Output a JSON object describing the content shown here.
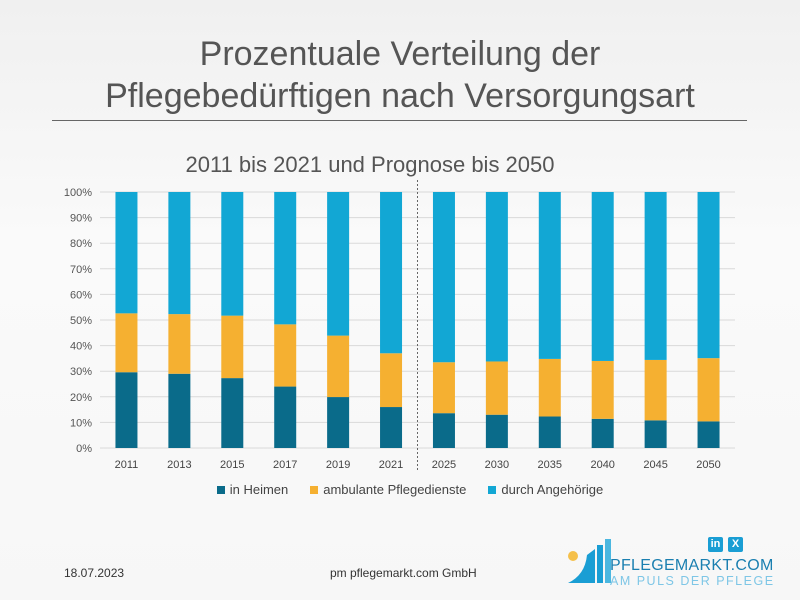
{
  "title_line1": "Prozentuale Verteilung der",
  "title_line2": "Pflegebedürftigen nach Versorgungsart",
  "footer": {
    "date": "18.07.2023",
    "company": "pm pflegemarkt.com GmbH",
    "brand": "PFLEGEMARKT.COM",
    "tagline": "AM PULS DER PFLEGE",
    "social": [
      "in",
      "X"
    ]
  },
  "chart_data": {
    "type": "bar",
    "stacked": true,
    "title": "2011 bis 2021 und Prognose bis 2050",
    "categories": [
      "2011",
      "2013",
      "2015",
      "2017",
      "2019",
      "2021",
      "2025",
      "2030",
      "2035",
      "2040",
      "2045",
      "2050"
    ],
    "series": [
      {
        "name": "in Heimen",
        "color": "#0a6b8a",
        "values": [
          29.6,
          29.0,
          27.3,
          24.0,
          19.9,
          16.0,
          13.6,
          13.0,
          12.3,
          11.4,
          10.8,
          10.4
        ]
      },
      {
        "name": "ambulante Pflegedienste",
        "color": "#f5b031",
        "values": [
          23.0,
          23.3,
          24.4,
          24.3,
          24.0,
          21.0,
          19.9,
          20.8,
          22.5,
          22.6,
          23.6,
          24.7
        ]
      },
      {
        "name": "durch Angehörige",
        "color": "#12a7d4",
        "values": [
          47.4,
          47.7,
          48.3,
          51.7,
          56.1,
          63.0,
          66.5,
          66.2,
          65.2,
          66.0,
          65.6,
          64.9
        ]
      }
    ],
    "yticks": [
      "0%",
      "10%",
      "20%",
      "30%",
      "40%",
      "50%",
      "60%",
      "70%",
      "80%",
      "90%",
      "100%"
    ],
    "ylim": [
      0,
      100
    ],
    "grid": true,
    "legend": "bottom",
    "divider_after": "2021"
  }
}
